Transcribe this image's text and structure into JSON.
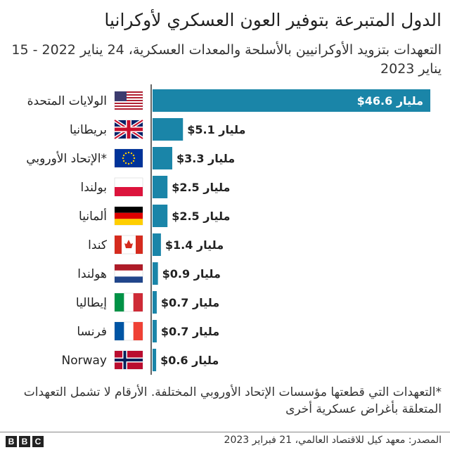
{
  "title": "الدول المتبرعة بتوفير العون العسكري لأوكرانيا",
  "subtitle": "التعهدات بتزويد الأوكرانيين بالأسلحة والمعدات العسكرية، 24 يناير 2022 - 15 يناير 2023",
  "note": "*التعهدات التي قطعتها مؤسسات الإتحاد الأوروبي المختلفة. الأرقام لا تشمل التعهدات المتعلقة بأغراض عسكرية أخرى",
  "source": "المصدر: معهد كيل للاقتصاد العالمي، 21 فبراير 2023",
  "logo": "BBC",
  "colors": {
    "bar": "#1a85a8",
    "label_inside": "#ffffff",
    "label_outside": "#222222"
  },
  "chart_data": {
    "type": "bar",
    "orientation": "horizontal",
    "unit_label": "مليار",
    "currency": "$",
    "categories": [
      "الولايات المتحدة",
      "بريطانيا",
      "الإتحاد الأوروبي*",
      "بولندا",
      "ألمانيا",
      "كندا",
      "هولندا",
      "إيطاليا",
      "فرنسا",
      "Norway"
    ],
    "flags": [
      "us",
      "uk",
      "eu",
      "poland",
      "germany",
      "canada",
      "netherlands",
      "italy",
      "france",
      "norway"
    ],
    "values": [
      46.6,
      5.1,
      3.3,
      2.5,
      2.5,
      1.4,
      0.9,
      0.7,
      0.7,
      0.6
    ],
    "value_labels": [
      "$46.6 مليار",
      "$5.1 مليار",
      "$3.3 مليار",
      "$2.5 مليار",
      "$2.5 مليار",
      "$1.4 مليار",
      "$0.9 مليار",
      "$0.7 مليار",
      "$0.7 مليار",
      "$0.6 مليار"
    ],
    "xlim": [
      0,
      46.6
    ],
    "grid": false
  }
}
